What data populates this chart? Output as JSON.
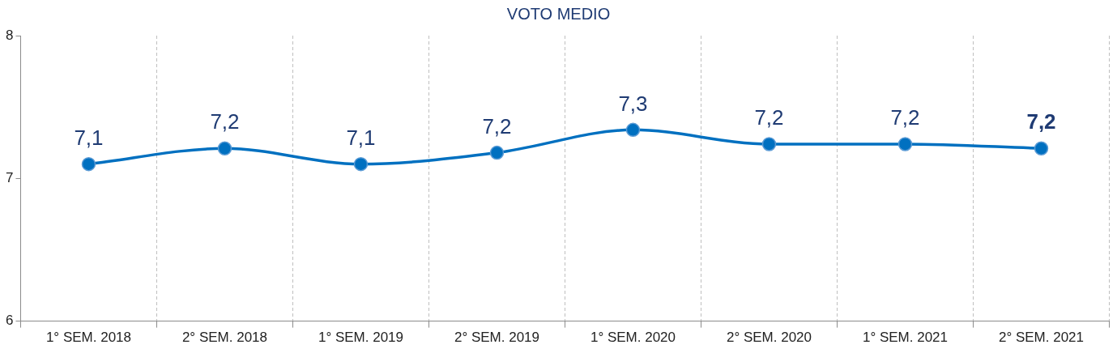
{
  "chart_data": {
    "type": "line",
    "title": "VOTO MEDIO",
    "categories": [
      "1° SEM. 2018",
      "2° SEM. 2018",
      "1° SEM. 2019",
      "2° SEM. 2019",
      "1° SEM. 2020",
      "2° SEM. 2020",
      "1° SEM. 2021",
      "2° SEM. 2021"
    ],
    "series": [
      {
        "color": "#0070c0",
        "values": [
          7.1,
          7.21,
          7.1,
          7.18,
          7.34,
          7.24,
          7.24,
          7.21
        ],
        "value_labels": [
          "7,1",
          "7,2",
          "7,1",
          "7,2",
          "7,3",
          "7,2",
          "7,2",
          "7,2"
        ]
      }
    ],
    "ylim": [
      6,
      8
    ],
    "yticks": [
      6,
      7,
      8
    ],
    "grid": "x",
    "legend": false,
    "marker": "circle",
    "line_style": "solid"
  }
}
